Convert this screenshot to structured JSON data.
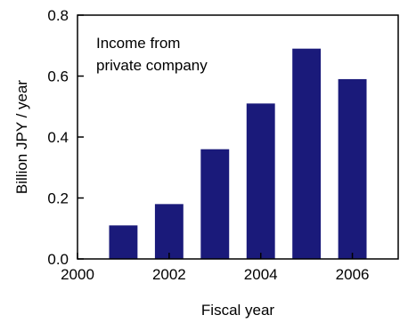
{
  "chart_data": {
    "type": "bar",
    "title": "",
    "annotation_lines": [
      "Income from",
      "private company"
    ],
    "xlabel": "Fiscal year",
    "ylabel": "Billion JPY / year",
    "x": [
      2001,
      2002,
      2003,
      2004,
      2005,
      2006
    ],
    "values": [
      0.11,
      0.18,
      0.36,
      0.51,
      0.69,
      0.59
    ],
    "xlim": [
      2000,
      2007
    ],
    "ylim": [
      0,
      0.8
    ],
    "x_ticks": [
      "2000",
      "2002",
      "2004",
      "2006"
    ],
    "x_tick_values": [
      2000,
      2002,
      2004,
      2006
    ],
    "y_ticks": [
      "0.0",
      "0.2",
      "0.4",
      "0.6",
      "0.8"
    ],
    "y_tick_values": [
      0,
      0.2,
      0.4,
      0.6,
      0.8
    ],
    "grid": false,
    "legend": "none",
    "bar_color": "#1a1a7a"
  }
}
